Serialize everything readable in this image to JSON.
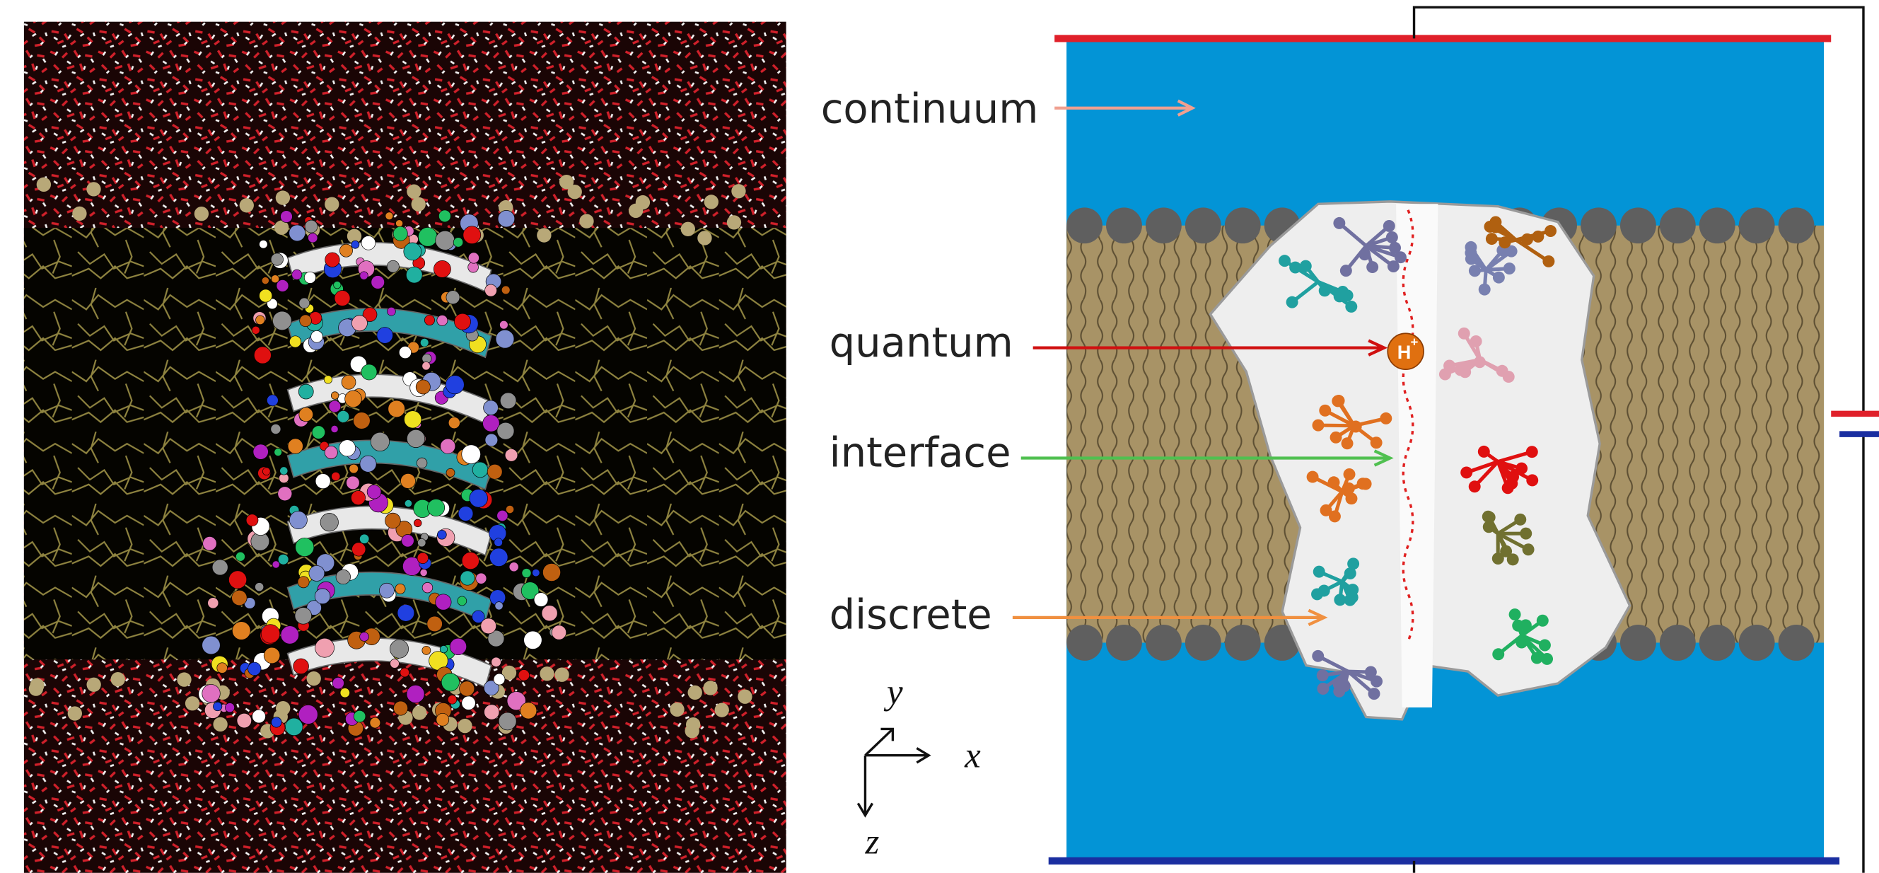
{
  "labels": {
    "continuum": "continuum",
    "quantum": "quantum",
    "interface": "interface",
    "discrete": "discrete"
  },
  "ion": {
    "symbol": "H",
    "charge": "+"
  },
  "axes": {
    "x": "x",
    "y": "y",
    "z": "z"
  }
}
